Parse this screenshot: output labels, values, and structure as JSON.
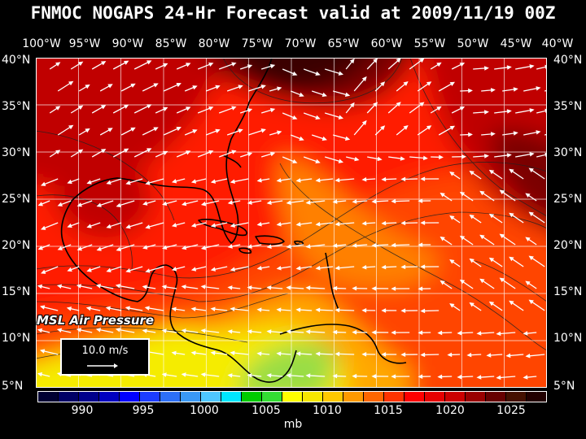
{
  "title": "FNMOC NOGAPS 24-Hr Forecast valid at 2009/11/19 00Z",
  "longitude_labels": [
    "100°W",
    "95°W",
    "90°W",
    "85°W",
    "80°W",
    "75°W",
    "70°W",
    "65°W",
    "60°W",
    "55°W",
    "50°W",
    "45°W",
    "40°W"
  ],
  "latitude_labels": [
    "40°N",
    "35°N",
    "30°N",
    "25°N",
    "20°N",
    "15°N",
    "10°N",
    "5°N"
  ],
  "overlay_label": "MSL Air Pressure",
  "wind_reference": {
    "label": "10.0 m/s"
  },
  "colorbar": {
    "colors": [
      "#000033",
      "#000066",
      "#00008c",
      "#0000c0",
      "#0000ff",
      "#1c3cff",
      "#2d6ff6",
      "#3a98f5",
      "#4ec6ff",
      "#00e6ff",
      "#00cc00",
      "#33dd33",
      "#ffff00",
      "#f7e600",
      "#ffc800",
      "#ff9900",
      "#ff6600",
      "#ff3300",
      "#ff0000",
      "#e60000",
      "#cc0000",
      "#990000",
      "#660000",
      "#441000",
      "#220000"
    ],
    "tick_labels": [
      "990",
      "995",
      "1000",
      "1005",
      "1010",
      "1015",
      "1020",
      "1025"
    ],
    "unit": "mb"
  },
  "field_colors": {
    "dark_maroon": "#3a0000",
    "maroon": "#7a0000",
    "dark_red": "#c00000",
    "red": "#ff1a00",
    "red_orange": "#ff4400",
    "orange": "#ff8000",
    "light_orange": "#ffa800",
    "yellow_orange": "#ffcc00",
    "yellow": "#f5ec00",
    "green_yellow": "#99dd44"
  }
}
